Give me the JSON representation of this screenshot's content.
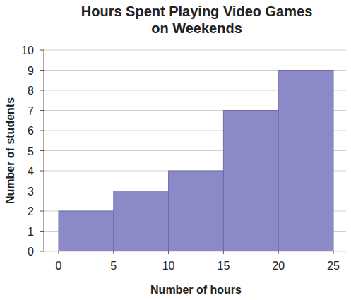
{
  "chart_data": {
    "type": "histogram",
    "title": "Hours Spent Playing Video Games on Weekends",
    "x_label": "Number of hours",
    "y_label": "Number of students",
    "bins": [
      0,
      5,
      10,
      15,
      20,
      25
    ],
    "values": [
      2,
      3,
      4,
      7,
      9
    ],
    "color": "#8c8ac6",
    "xlim": [
      0,
      25
    ],
    "xticks": [
      0,
      5,
      10,
      15,
      20,
      25
    ],
    "ylim": [
      0,
      10
    ],
    "yticks": [
      0,
      1,
      2,
      3,
      4,
      5,
      6,
      7,
      8,
      9,
      10
    ],
    "grid": true
  }
}
